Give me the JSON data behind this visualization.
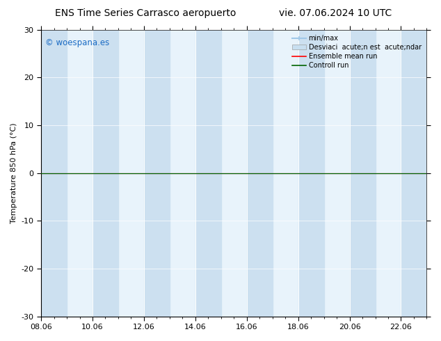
{
  "title_left": "ENS Time Series Carrasco aeropuerto",
  "title_right": "vie. 07.06.2024 10 UTC",
  "ylabel": "Temperature 850 hPa (°C)",
  "ylim": [
    -30,
    30
  ],
  "yticks": [
    -30,
    -20,
    -10,
    0,
    10,
    20,
    30
  ],
  "xlabel_ticks": [
    "08.06",
    "10.06",
    "12.06",
    "14.06",
    "16.06",
    "18.06",
    "20.06",
    "22.06"
  ],
  "x_tick_pos": [
    0,
    2,
    4,
    6,
    8,
    10,
    12,
    14
  ],
  "x_max": 15.0,
  "shade_bands": [
    [
      0.0,
      1.0
    ],
    [
      2.0,
      3.0
    ],
    [
      4.0,
      5.0
    ],
    [
      6.0,
      7.0
    ],
    [
      8.0,
      9.0
    ],
    [
      10.0,
      11.0
    ],
    [
      12.0,
      13.0
    ],
    [
      14.0,
      15.0
    ]
  ],
  "shade_color": "#cce0f0",
  "hline_color": "black",
  "hline_lw": 1.0,
  "ensemble_mean_color": "red",
  "control_run_color": "#006400",
  "watermark": "© woespana.es",
  "watermark_color": "#1a6bc4",
  "minmax_color": "#a0c8e8",
  "std_color": "#c8dff0",
  "background_color": "#ffffff",
  "plot_bg_color": "#e8f3fb",
  "title_fontsize": 10,
  "axis_fontsize": 8,
  "tick_fontsize": 8,
  "legend_fontsize": 7
}
